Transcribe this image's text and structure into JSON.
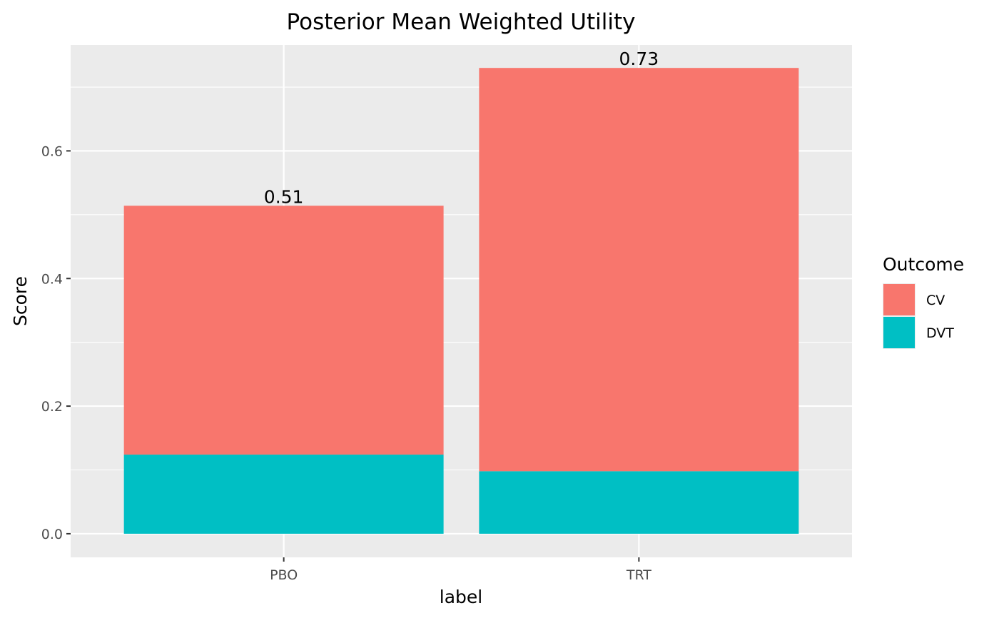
{
  "chart_data": {
    "type": "bar",
    "stacked": true,
    "title": "Posterior Mean Weighted Utility",
    "xlabel": "label",
    "ylabel": "Score",
    "categories": [
      "PBO",
      "TRT"
    ],
    "series": [
      {
        "name": "DVT",
        "values": [
          0.124,
          0.098
        ],
        "color": "#00BFC4"
      },
      {
        "name": "CV",
        "values": [
          0.39,
          0.632
        ],
        "color": "#F8766D"
      }
    ],
    "totals": [
      0.514,
      0.73
    ],
    "total_labels": [
      "0.51",
      "0.73"
    ],
    "ylim": [
      -0.037,
      0.766
    ],
    "yticks": [
      0.0,
      0.2,
      0.4,
      0.6
    ],
    "ytick_labels": [
      "0.0",
      "0.2",
      "0.4",
      "0.6"
    ],
    "grid": true,
    "panel_background": "#EBEBEB",
    "grid_color": "#FFFFFF",
    "legend": {
      "title": "Outcome",
      "placement": "right",
      "entries": [
        {
          "name": "CV",
          "color": "#F8766D"
        },
        {
          "name": "DVT",
          "color": "#00BFC4"
        }
      ]
    }
  }
}
